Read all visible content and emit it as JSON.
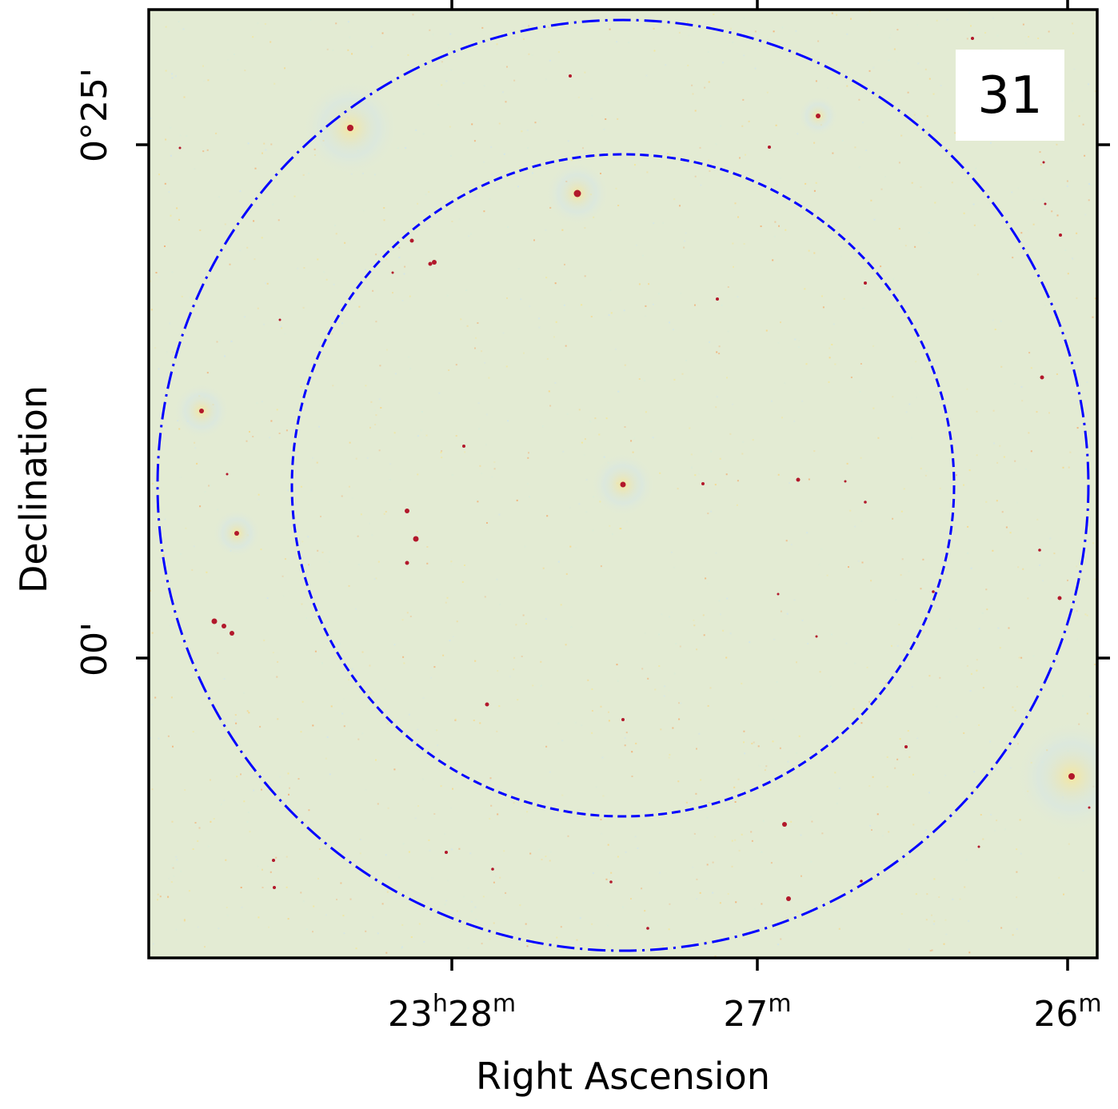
{
  "panel_label": "31",
  "axes": {
    "xlabel": "Right Ascension",
    "ylabel": "Declination",
    "x_ticks": [
      {
        "main": "23",
        "sup1": "h",
        "main2": "28",
        "sup2": "m"
      },
      {
        "main": "",
        "sup1": "",
        "main2": "27",
        "sup2": "m"
      },
      {
        "main": "",
        "sup1": "",
        "main2": "26",
        "sup2": "m"
      }
    ],
    "y_ticks": [
      "0°25'",
      "00'"
    ]
  },
  "image": {
    "colormap": "RdYlBu_r",
    "background_color": "#e3ebd3",
    "source_color": "#b2182b",
    "circle_color": "#0000ff",
    "circles": [
      {
        "style": "dash-dot",
        "name": "outer"
      },
      {
        "style": "dashed",
        "name": "inner"
      }
    ]
  }
}
